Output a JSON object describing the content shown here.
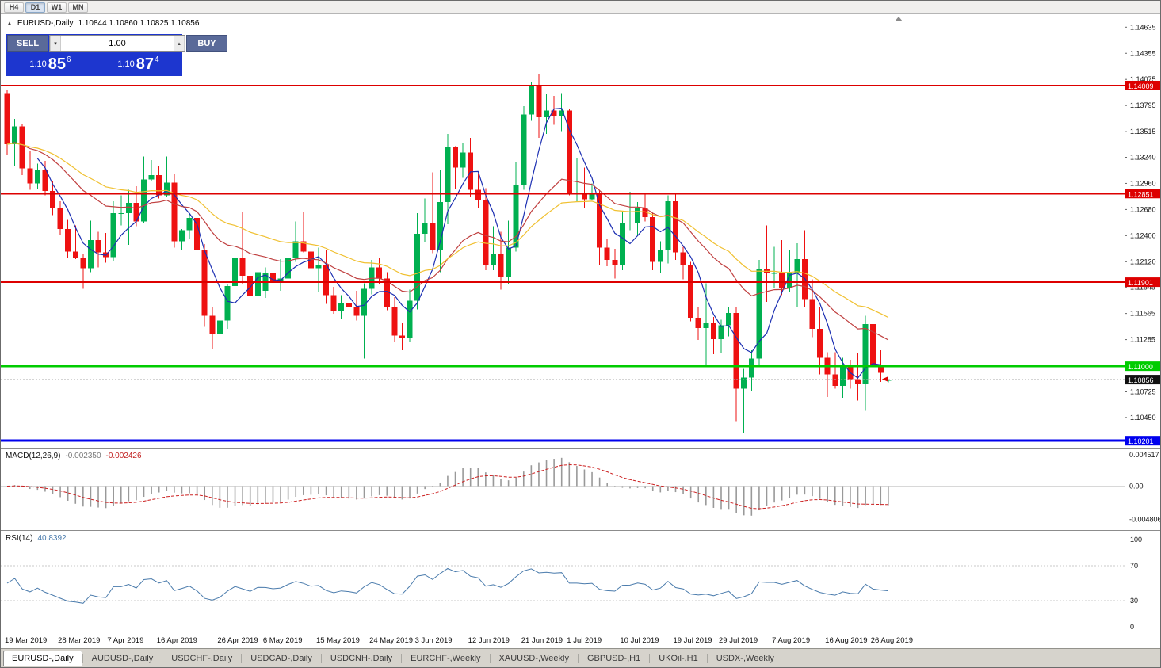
{
  "toolbar": {
    "timeframes": [
      "H4",
      "D1",
      "W1",
      "MN"
    ],
    "active": "D1"
  },
  "chart_header": {
    "symbol": "EURUSD-,Daily",
    "ohlc": "1.10844 1.10860 1.10825 1.10856"
  },
  "trade_panel": {
    "sell_label": "SELL",
    "buy_label": "BUY",
    "volume": "1.00",
    "sell_price": {
      "base": "1.10",
      "pips": "85",
      "frac": "6"
    },
    "buy_price": {
      "base": "1.10",
      "pips": "87",
      "frac": "4"
    }
  },
  "indicators": {
    "macd": {
      "name": "MACD(12,26,9)",
      "main_value": "-0.002350",
      "signal_value": "-0.002426"
    },
    "rsi": {
      "name": "RSI(14)",
      "value": "40.8392"
    }
  },
  "ui_colors": {
    "trade_panel_blue": "#1d36cf",
    "trade_button_slate": "#5a6a99",
    "tab_bar_gray": "#d6d3cc"
  },
  "tabs": [
    {
      "label": "EURUSD-,Daily",
      "active": true
    },
    {
      "label": "AUDUSD-,Daily"
    },
    {
      "label": "USDCHF-,Daily"
    },
    {
      "label": "USDCAD-,Daily"
    },
    {
      "label": "USDCNH-,Daily"
    },
    {
      "label": "EURCHF-,Weekly"
    },
    {
      "label": "XAUUSD-,Weekly"
    },
    {
      "label": "GBPUSD-,H1"
    },
    {
      "label": "UKOil-,H1"
    },
    {
      "label": "USDX-,Weekly"
    }
  ],
  "chart_data": {
    "type": "candlestick",
    "symbol": "EURUSD",
    "timeframe": "Daily",
    "price_range": [
      1.1016,
      1.1468
    ],
    "price_ticks": [
      "1.14635",
      "1.14355",
      "1.14075",
      "1.13795",
      "1.13515",
      "1.13240",
      "1.12960",
      "1.12680",
      "1.12400",
      "1.12120",
      "1.11845",
      "1.11565",
      "1.11285",
      "1.10725",
      "1.10450"
    ],
    "levels": [
      {
        "value": 1.14009,
        "label": "1.14009",
        "color": "#dd0000",
        "width": 2
      },
      {
        "value": 1.12851,
        "label": "1.12851",
        "color": "#dd0000",
        "width": 2
      },
      {
        "value": 1.11901,
        "label": "1.11901",
        "color": "#dd0000",
        "width": 2
      },
      {
        "value": 1.11,
        "label": "1.11000",
        "color": "#00cc00",
        "width": 3
      },
      {
        "value": 1.10201,
        "label": "1.10201",
        "color": "#0000ee",
        "width": 3
      }
    ],
    "current_price": {
      "value": 1.10856,
      "label": "1.10856"
    },
    "colors": {
      "bull": "#00b050",
      "bear": "#ee1111",
      "ma_fast": "#1c2fb2",
      "ma_mid": "#c04040",
      "ma_slow": "#f0c030",
      "macd_hist": "#999999",
      "macd_signal": "#cc2222",
      "rsi_line": "#4a7bac"
    },
    "moving_averages": [
      {
        "period": 5,
        "method": "sma"
      },
      {
        "period": 20,
        "method": "ema"
      },
      {
        "period": 34,
        "method": "ema"
      }
    ],
    "x_labels": [
      {
        "text": "19 Mar 2019",
        "i": 0
      },
      {
        "text": "28 Mar 2019",
        "i": 7
      },
      {
        "text": "7 Apr 2019",
        "i": 13.5
      },
      {
        "text": "16 Apr 2019",
        "i": 20
      },
      {
        "text": "26 Apr 2019",
        "i": 28
      },
      {
        "text": "6 May 2019",
        "i": 34
      },
      {
        "text": "15 May 2019",
        "i": 41
      },
      {
        "text": "24 May 2019",
        "i": 48
      },
      {
        "text": "3 Jun 2019",
        "i": 54
      },
      {
        "text": "12 Jun 2019",
        "i": 61
      },
      {
        "text": "21 Jun 2019",
        "i": 68
      },
      {
        "text": "1 Jul 2019",
        "i": 74
      },
      {
        "text": "10 Jul 2019",
        "i": 81
      },
      {
        "text": "19 Jul 2019",
        "i": 88
      },
      {
        "text": "29 Jul 2019",
        "i": 94
      },
      {
        "text": "7 Aug 2019",
        "i": 101
      },
      {
        "text": "16 Aug 2019",
        "i": 108
      },
      {
        "text": "26 Aug 2019",
        "i": 114
      }
    ],
    "macd": {
      "params": [
        12,
        26,
        9
      ],
      "axis_labels": [
        {
          "text": "0.004517",
          "v": 0.004517
        },
        {
          "text": "0.00",
          "v": 0
        },
        {
          "text": "-0.004806",
          "v": -0.004806
        }
      ]
    },
    "rsi": {
      "period": 14,
      "axis_labels": [
        {
          "text": "100",
          "v": 100
        },
        {
          "text": "70",
          "v": 70
        },
        {
          "text": "30",
          "v": 30
        },
        {
          "text": "0",
          "v": 0
        }
      ],
      "level_lines": [
        70,
        30
      ]
    },
    "candles": [
      [
        1.1393,
        1.1396,
        1.1327,
        1.1338
      ],
      [
        1.1338,
        1.1365,
        1.1315,
        1.1357
      ],
      [
        1.1357,
        1.136,
        1.1305,
        1.1312
      ],
      [
        1.1312,
        1.1331,
        1.1289,
        1.1296
      ],
      [
        1.1296,
        1.1317,
        1.129,
        1.1311
      ],
      [
        1.1311,
        1.132,
        1.1283,
        1.1288
      ],
      [
        1.1288,
        1.1299,
        1.1262,
        1.1269
      ],
      [
        1.1269,
        1.1277,
        1.1241,
        1.1247
      ],
      [
        1.1247,
        1.1257,
        1.1216,
        1.1223
      ],
      [
        1.1223,
        1.1251,
        1.1215,
        1.1216
      ],
      [
        1.1216,
        1.122,
        1.1183,
        1.1205
      ],
      [
        1.1205,
        1.1256,
        1.1201,
        1.1235
      ],
      [
        1.1235,
        1.1244,
        1.1206,
        1.1222
      ],
      [
        1.1222,
        1.1243,
        1.1211,
        1.1217
      ],
      [
        1.1217,
        1.1277,
        1.1213,
        1.1264
      ],
      [
        1.1264,
        1.1283,
        1.1251,
        1.1264
      ],
      [
        1.1264,
        1.1289,
        1.123,
        1.1275
      ],
      [
        1.1275,
        1.1293,
        1.125,
        1.1255
      ],
      [
        1.1255,
        1.1325,
        1.1253,
        1.13
      ],
      [
        1.13,
        1.1321,
        1.1299,
        1.1305
      ],
      [
        1.1305,
        1.1315,
        1.128,
        1.1283
      ],
      [
        1.1283,
        1.1325,
        1.1281,
        1.1297
      ],
      [
        1.1297,
        1.1306,
        1.1227,
        1.1234
      ],
      [
        1.1234,
        1.1247,
        1.1225,
        1.1246
      ],
      [
        1.1246,
        1.1263,
        1.1236,
        1.1259
      ],
      [
        1.1259,
        1.1263,
        1.1193,
        1.1225
      ],
      [
        1.1225,
        1.1231,
        1.1142,
        1.1154
      ],
      [
        1.1154,
        1.1163,
        1.1118,
        1.1134
      ],
      [
        1.1134,
        1.1176,
        1.1112,
        1.1149
      ],
      [
        1.1149,
        1.1188,
        1.114,
        1.1186
      ],
      [
        1.1186,
        1.1228,
        1.1177,
        1.1216
      ],
      [
        1.1216,
        1.1266,
        1.1188,
        1.1197
      ],
      [
        1.1197,
        1.122,
        1.1156,
        1.1175
      ],
      [
        1.1175,
        1.1207,
        1.1136,
        1.1201
      ],
      [
        1.1181,
        1.1206,
        1.1173,
        1.12
      ],
      [
        1.12,
        1.1217,
        1.1168,
        1.119
      ],
      [
        1.119,
        1.1215,
        1.1181,
        1.1194
      ],
      [
        1.1194,
        1.1252,
        1.1175,
        1.1216
      ],
      [
        1.1216,
        1.1255,
        1.1212,
        1.1234
      ],
      [
        1.1234,
        1.1265,
        1.1222,
        1.1223
      ],
      [
        1.1223,
        1.1244,
        1.1202,
        1.1205
      ],
      [
        1.1205,
        1.1227,
        1.1179,
        1.1209
      ],
      [
        1.1209,
        1.1225,
        1.1167,
        1.1176
      ],
      [
        1.1176,
        1.1185,
        1.1156,
        1.1159
      ],
      [
        1.1159,
        1.1176,
        1.1151,
        1.1168
      ],
      [
        1.1168,
        1.1189,
        1.1143,
        1.1163
      ],
      [
        1.1163,
        1.1181,
        1.1149,
        1.1154
      ],
      [
        1.1154,
        1.1189,
        1.1108,
        1.1183
      ],
      [
        1.1183,
        1.1214,
        1.1177,
        1.1206
      ],
      [
        1.1206,
        1.1216,
        1.1188,
        1.1194
      ],
      [
        1.1194,
        1.1201,
        1.116,
        1.1164
      ],
      [
        1.1164,
        1.1174,
        1.1126,
        1.1133
      ],
      [
        1.1133,
        1.1147,
        1.1117,
        1.113
      ],
      [
        1.113,
        1.1182,
        1.1126,
        1.117
      ],
      [
        1.117,
        1.1264,
        1.1161,
        1.1242
      ],
      [
        1.1242,
        1.128,
        1.1233,
        1.1253
      ],
      [
        1.1253,
        1.1308,
        1.1221,
        1.1224
      ],
      [
        1.1224,
        1.131,
        1.1201,
        1.1276
      ],
      [
        1.1276,
        1.1349,
        1.1252,
        1.1335
      ],
      [
        1.1335,
        1.1336,
        1.129,
        1.1313
      ],
      [
        1.1313,
        1.1339,
        1.1302,
        1.1329
      ],
      [
        1.1329,
        1.1345,
        1.1282,
        1.1289
      ],
      [
        1.1289,
        1.1307,
        1.1269,
        1.1278
      ],
      [
        1.1278,
        1.1291,
        1.1203,
        1.1208
      ],
      [
        1.1208,
        1.125,
        1.1203,
        1.122
      ],
      [
        1.122,
        1.1244,
        1.1182,
        1.1196
      ],
      [
        1.1196,
        1.1256,
        1.1188,
        1.1227
      ],
      [
        1.1227,
        1.1319,
        1.1223,
        1.1294
      ],
      [
        1.1294,
        1.1379,
        1.1289,
        1.137
      ],
      [
        1.137,
        1.1405,
        1.1363,
        1.14
      ],
      [
        1.14,
        1.1413,
        1.1345,
        1.1367
      ],
      [
        1.1367,
        1.1392,
        1.1349,
        1.1374
      ],
      [
        1.1374,
        1.139,
        1.1359,
        1.1368
      ],
      [
        1.1368,
        1.1393,
        1.1352,
        1.1374
      ],
      [
        1.1374,
        1.1376,
        1.1283,
        1.1286
      ],
      [
        1.1286,
        1.1323,
        1.1276,
        1.1286
      ],
      [
        1.1286,
        1.1313,
        1.1269,
        1.1279
      ],
      [
        1.1279,
        1.1296,
        1.1278,
        1.1284
      ],
      [
        1.1284,
        1.1289,
        1.1208,
        1.1227
      ],
      [
        1.1227,
        1.1236,
        1.1207,
        1.1214
      ],
      [
        1.1214,
        1.1226,
        1.1194,
        1.1209
      ],
      [
        1.1209,
        1.1265,
        1.1203,
        1.1253
      ],
      [
        1.1253,
        1.1287,
        1.1246,
        1.1254
      ],
      [
        1.1254,
        1.1276,
        1.124,
        1.127
      ],
      [
        1.127,
        1.1285,
        1.1255,
        1.126
      ],
      [
        1.126,
        1.1264,
        1.1203,
        1.1212
      ],
      [
        1.1212,
        1.1234,
        1.12,
        1.1225
      ],
      [
        1.1225,
        1.1283,
        1.121,
        1.1277
      ],
      [
        1.1277,
        1.1284,
        1.1214,
        1.1222
      ],
      [
        1.1222,
        1.1228,
        1.1193,
        1.1209
      ],
      [
        1.1209,
        1.1212,
        1.1148,
        1.1152
      ],
      [
        1.1152,
        1.1164,
        1.1128,
        1.1141
      ],
      [
        1.1141,
        1.1189,
        1.1102,
        1.1147
      ],
      [
        1.1147,
        1.1153,
        1.1113,
        1.1129
      ],
      [
        1.1129,
        1.115,
        1.1114,
        1.1144
      ],
      [
        1.1144,
        1.1163,
        1.1132,
        1.1157
      ],
      [
        1.1157,
        1.1164,
        1.1041,
        1.1076
      ],
      [
        1.1076,
        1.1097,
        1.1028,
        1.1088
      ],
      [
        1.1088,
        1.1117,
        1.1073,
        1.1108
      ],
      [
        1.1108,
        1.1214,
        1.1102,
        1.1204
      ],
      [
        1.1204,
        1.1251,
        1.1169,
        1.12
      ],
      [
        1.12,
        1.1228,
        1.1184,
        1.12
      ],
      [
        1.12,
        1.1235,
        1.1176,
        1.1184
      ],
      [
        1.1184,
        1.1224,
        1.1179,
        1.12
      ],
      [
        1.12,
        1.1232,
        1.1163,
        1.1215
      ],
      [
        1.1215,
        1.1246,
        1.1164,
        1.1172
      ],
      [
        1.1172,
        1.1193,
        1.1131,
        1.114
      ],
      [
        1.114,
        1.1164,
        1.1091,
        1.1109
      ],
      [
        1.1109,
        1.1115,
        1.1067,
        1.1091
      ],
      [
        1.1091,
        1.1115,
        1.1076,
        1.1079
      ],
      [
        1.1079,
        1.1109,
        1.1066,
        1.11
      ],
      [
        1.11,
        1.1107,
        1.1076,
        1.1086
      ],
      [
        1.1086,
        1.1114,
        1.1063,
        1.1081
      ],
      [
        1.1081,
        1.1154,
        1.1052,
        1.1145
      ],
      [
        1.1145,
        1.1164,
        1.1095,
        1.1102
      ],
      [
        1.1102,
        1.1117,
        1.1083,
        1.1093
      ],
      [
        1.10844,
        1.1086,
        1.10825,
        1.10856
      ]
    ]
  }
}
